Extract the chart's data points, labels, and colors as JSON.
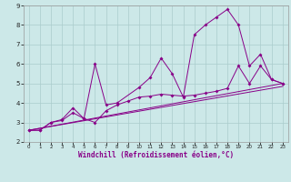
{
  "xlabel": "Windchill (Refroidissement éolien,°C)",
  "background_color": "#cce8e8",
  "grid_color": "#aacccc",
  "line_color": "#880088",
  "series1_x": [
    0,
    1,
    2,
    3,
    4,
    5,
    6,
    7,
    8,
    10,
    11,
    12,
    13,
    14,
    15,
    16,
    17,
    18,
    19,
    20,
    21,
    22,
    23
  ],
  "series1_y": [
    2.6,
    2.6,
    3.0,
    3.1,
    3.5,
    3.2,
    6.0,
    3.9,
    4.0,
    4.8,
    5.3,
    6.3,
    5.5,
    4.3,
    7.5,
    8.0,
    8.4,
    8.8,
    8.0,
    5.9,
    6.5,
    5.2,
    5.0
  ],
  "series2_x": [
    0,
    1,
    2,
    3,
    4,
    5,
    6,
    7,
    8,
    9,
    10,
    11,
    12,
    13,
    14,
    15,
    16,
    17,
    18,
    19,
    20,
    21,
    22,
    23
  ],
  "series2_y": [
    2.6,
    2.6,
    3.0,
    3.15,
    3.75,
    3.2,
    3.0,
    3.6,
    3.9,
    4.1,
    4.3,
    4.35,
    4.45,
    4.4,
    4.35,
    4.4,
    4.5,
    4.6,
    4.75,
    5.9,
    5.0,
    5.9,
    5.2,
    5.0
  ],
  "series3_x": [
    0,
    23
  ],
  "series3_y": [
    2.6,
    5.0
  ],
  "series4_x": [
    0,
    23
  ],
  "series4_y": [
    2.6,
    4.85
  ],
  "ylim": [
    2.0,
    9.0
  ],
  "xlim": [
    -0.5,
    23.5
  ],
  "yticks": [
    2,
    3,
    4,
    5,
    6,
    7,
    8,
    9
  ],
  "xticks": [
    0,
    1,
    2,
    3,
    4,
    5,
    6,
    7,
    8,
    9,
    10,
    11,
    12,
    13,
    14,
    15,
    16,
    17,
    18,
    19,
    20,
    21,
    22,
    23
  ]
}
